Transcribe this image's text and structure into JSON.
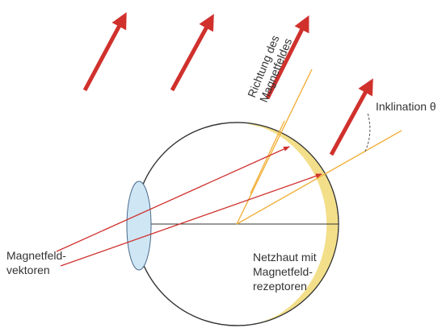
{
  "labels": {
    "field_direction": [
      "Richtung des",
      "Magnetfeldes"
    ],
    "inclination": "Inklination θ",
    "vectors": [
      "Magnetfeld-",
      "vektoren"
    ],
    "retina": [
      "Netzhaut mit",
      "Magnetfeld-",
      "rezeptoren"
    ]
  }
}
